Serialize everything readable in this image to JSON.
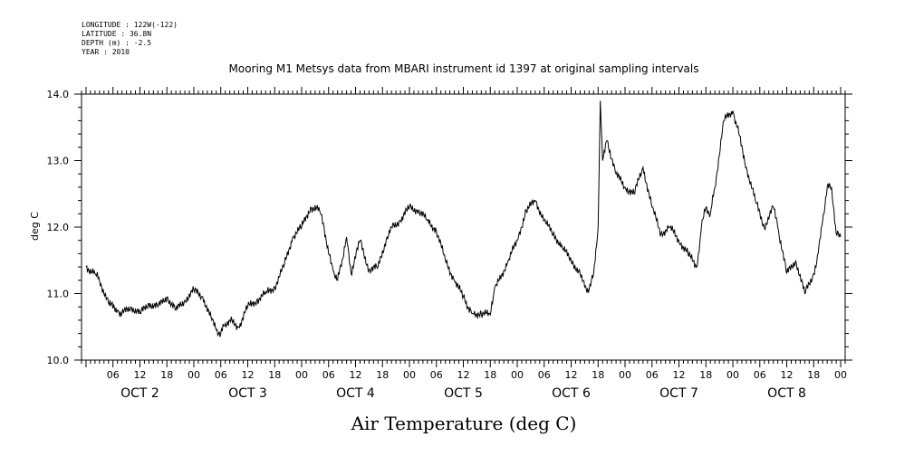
{
  "header": {
    "longitude": "LONGITUDE : 122W(-122)",
    "latitude": "LATITUDE : 36.8N",
    "depth": "DEPTH (m) : -2.5",
    "year": "YEAR : 2010"
  },
  "footer_label": "Air Temperature (deg C)",
  "chart_data": {
    "type": "line",
    "title": "Mooring M1 Metsys data from MBARI instrument id 1397 at original sampling intervals",
    "ylabel": "deg C",
    "xlabel": "Air Temperature (deg C)",
    "ylim": [
      10.0,
      14.0
    ],
    "yticks": [
      "10.0",
      "11.0",
      "12.0",
      "13.0",
      "14.0"
    ],
    "xlim": [
      "2010-10-01T23:00",
      "2010-10-09T01:00"
    ],
    "hour_ticks": [
      "06",
      "12",
      "18",
      "00",
      "06",
      "12",
      "18",
      "00",
      "06",
      "12",
      "18",
      "00",
      "06",
      "12",
      "18",
      "00",
      "06",
      "12",
      "18",
      "00",
      "06",
      "12",
      "18",
      "00",
      "06",
      "12",
      "18",
      "00"
    ],
    "day_labels": [
      "OCT 2",
      "OCT 3",
      "OCT 4",
      "OCT 5",
      "OCT 6",
      "OCT 7",
      "OCT 8"
    ],
    "grid": false,
    "series": [
      {
        "x": [
          "2010-10-02T00:00",
          "2010-10-02T02:00",
          "2010-10-02T03:00",
          "2010-10-02T05:00",
          "2010-10-02T07:00",
          "2010-10-02T08:00",
          "2010-10-02T10:00",
          "2010-10-02T12:00",
          "2010-10-02T14:00",
          "2010-10-02T16:00",
          "2010-10-02T18:00",
          "2010-10-02T20:00",
          "2010-10-02T22:00",
          "2010-10-03T00:00",
          "2010-10-03T02:00",
          "2010-10-03T04:00",
          "2010-10-03T05:00",
          "2010-10-03T06:00",
          "2010-10-03T07:00",
          "2010-10-03T08:00",
          "2010-10-03T10:00",
          "2010-10-03T12:00",
          "2010-10-03T14:00",
          "2010-10-03T16:00",
          "2010-10-03T18:00",
          "2010-10-03T20:00",
          "2010-10-03T22:00",
          "2010-10-04T00:00",
          "2010-10-04T02:00",
          "2010-10-04T04:00",
          "2010-10-04T05:00",
          "2010-10-04T06:00",
          "2010-10-04T07:00",
          "2010-10-04T08:00",
          "2010-10-04T09:00",
          "2010-10-04T10:00",
          "2010-10-04T11:00",
          "2010-10-04T13:00",
          "2010-10-04T15:00",
          "2010-10-04T17:00",
          "2010-10-04T19:00",
          "2010-10-04T20:00",
          "2010-10-04T22:00",
          "2010-10-05T00:00",
          "2010-10-05T02:00",
          "2010-10-05T04:00",
          "2010-10-05T06:00",
          "2010-10-05T08:00",
          "2010-10-05T10:00",
          "2010-10-05T12:00",
          "2010-10-05T13:00",
          "2010-10-05T14:00",
          "2010-10-05T16:00",
          "2010-10-05T18:00",
          "2010-10-05T19:00",
          "2010-10-05T20:00",
          "2010-10-05T22:00",
          "2010-10-06T00:00",
          "2010-10-06T02:00",
          "2010-10-06T04:00",
          "2010-10-06T06:00",
          "2010-10-06T08:00",
          "2010-10-06T10:00",
          "2010-10-06T12:00",
          "2010-10-06T14:00",
          "2010-10-06T15:00",
          "2010-10-06T16:00",
          "2010-10-06T17:00",
          "2010-10-06T18:00",
          "2010-10-06T18:30",
          "2010-10-06T19:00",
          "2010-10-06T20:00",
          "2010-10-06T22:00",
          "2010-10-07T00:00",
          "2010-10-07T02:00",
          "2010-10-07T04:00",
          "2010-10-07T06:00",
          "2010-10-07T08:00",
          "2010-10-07T10:00",
          "2010-10-07T12:00",
          "2010-10-07T14:00",
          "2010-10-07T16:00",
          "2010-10-07T17:00",
          "2010-10-07T18:00",
          "2010-10-07T19:00",
          "2010-10-07T20:00",
          "2010-10-07T22:00",
          "2010-10-08T00:00",
          "2010-10-08T01:00",
          "2010-10-08T03:00",
          "2010-10-08T05:00",
          "2010-10-08T07:00",
          "2010-10-08T09:00",
          "2010-10-08T10:00",
          "2010-10-08T12:00",
          "2010-10-08T14:00",
          "2010-10-08T16:00",
          "2010-10-08T18:00",
          "2010-10-08T19:00",
          "2010-10-08T20:00",
          "2010-10-08T21:00",
          "2010-10-08T22:00",
          "2010-10-08T23:00",
          "2010-10-09T00:00"
        ],
        "y": [
          11.4,
          11.3,
          11.2,
          10.85,
          10.75,
          10.7,
          10.8,
          10.7,
          10.85,
          10.8,
          10.95,
          10.75,
          10.9,
          11.05,
          10.95,
          10.6,
          10.45,
          10.4,
          10.55,
          10.6,
          10.5,
          10.8,
          10.9,
          11.0,
          11.1,
          11.4,
          11.85,
          12.0,
          12.3,
          12.25,
          12.0,
          11.6,
          11.35,
          11.2,
          11.5,
          11.85,
          11.3,
          11.8,
          11.35,
          11.4,
          11.85,
          12.0,
          12.1,
          12.3,
          12.25,
          12.1,
          11.95,
          11.5,
          11.2,
          10.95,
          10.8,
          10.7,
          10.7,
          10.68,
          11.1,
          11.2,
          11.5,
          11.8,
          12.25,
          12.4,
          12.1,
          11.9,
          11.7,
          11.5,
          11.3,
          11.1,
          11.05,
          11.3,
          12.0,
          13.9,
          13.0,
          13.3,
          12.8,
          12.6,
          12.5,
          12.9,
          12.3,
          11.9,
          12.0,
          11.8,
          11.6,
          11.4,
          12.0,
          12.3,
          12.2,
          12.6,
          13.6,
          13.75,
          13.5,
          12.9,
          12.4,
          12.0,
          12.3,
          12.0,
          11.3,
          11.5,
          11.0,
          11.3,
          11.6,
          12.1,
          12.6,
          12.6,
          11.9,
          11.85
        ]
      }
    ]
  }
}
